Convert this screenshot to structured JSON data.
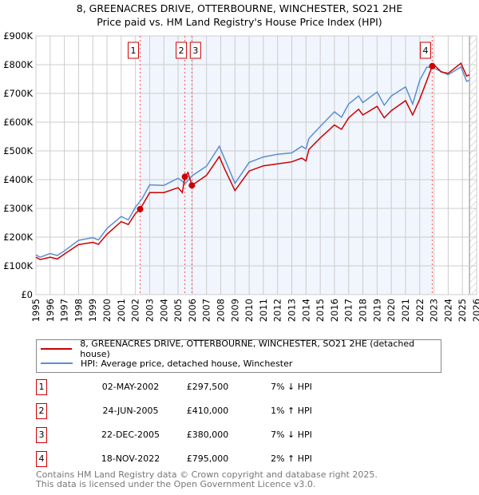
{
  "title": "8, GREENACRES DRIVE, OTTERBOURNE, WINCHESTER, SO21 2HE",
  "subtitle": "Price paid vs. HM Land Registry's House Price Index (HPI)",
  "chart_data": {
    "type": "line",
    "xlim": [
      1995,
      2026
    ],
    "ylim": [
      0,
      900000
    ],
    "yticks": [
      {
        "v": 0,
        "label": "£0"
      },
      {
        "v": 100000,
        "label": "£100K"
      },
      {
        "v": 200000,
        "label": "£200K"
      },
      {
        "v": 300000,
        "label": "£300K"
      },
      {
        "v": 400000,
        "label": "£400K"
      },
      {
        "v": 500000,
        "label": "£500K"
      },
      {
        "v": 600000,
        "label": "£600K"
      },
      {
        "v": 700000,
        "label": "£700K"
      },
      {
        "v": 800000,
        "label": "£800K"
      },
      {
        "v": 900000,
        "label": "£900K"
      }
    ],
    "xticks": [
      "1995",
      "1996",
      "1997",
      "1998",
      "1999",
      "2000",
      "2001",
      "2002",
      "2003",
      "2004",
      "2005",
      "2006",
      "2007",
      "2008",
      "2009",
      "2010",
      "2011",
      "2012",
      "2013",
      "2014",
      "2015",
      "2016",
      "2017",
      "2018",
      "2019",
      "2020",
      "2021",
      "2022",
      "2023",
      "2024",
      "2025",
      "2026"
    ],
    "shaded_range": [
      2002.33,
      2022.88
    ],
    "hatched_from": 2025.5,
    "series": [
      {
        "name": "8, GREENACRES DRIVE, OTTERBOURNE, WINCHESTER, SO21 2HE (detached house)",
        "color": "#cc0000",
        "x": [
          1995,
          1995.3,
          1996,
          1996.5,
          1997,
          1998,
          1999,
          1999.4,
          2000,
          2001,
          2001.5,
          2002,
          2002.33,
          2002.6,
          2003,
          2004,
          2005,
          2005.3,
          2005.48,
          2005.7,
          2005.97,
          2006.5,
          2007,
          2007.9,
          2008.3,
          2009,
          2010,
          2011,
          2012,
          2013,
          2013.7,
          2014,
          2014.2,
          2015,
          2016,
          2016.5,
          2017,
          2017.7,
          2018,
          2019,
          2019.5,
          2020,
          2021,
          2021.5,
          2022,
          2022.5,
          2022.88,
          2023,
          2023.5,
          2024,
          2024.9,
          2025.3,
          2025.5
        ],
        "y": [
          130000,
          122000,
          130000,
          124000,
          141000,
          174000,
          182000,
          175000,
          210000,
          254000,
          244000,
          282000,
          297500,
          320000,
          355000,
          355000,
          372000,
          355000,
          410000,
          425000,
          380000,
          398000,
          415000,
          480000,
          435000,
          362000,
          430000,
          448000,
          455000,
          462000,
          475000,
          465000,
          505000,
          545000,
          590000,
          575000,
          615000,
          645000,
          625000,
          655000,
          615000,
          640000,
          675000,
          625000,
          680000,
          745000,
          795000,
          800000,
          775000,
          770000,
          805000,
          760000,
          765000
        ]
      },
      {
        "name": "HPI: Average price, detached house, Winchester",
        "color": "#5b8fd1",
        "x": [
          1995,
          1995.3,
          1996,
          1996.5,
          1997,
          1998,
          1999,
          1999.4,
          2000,
          2001,
          2001.5,
          2002,
          2002.5,
          2003,
          2004,
          2005,
          2005.5,
          2006,
          2007,
          2007.9,
          2008.3,
          2009,
          2010,
          2011,
          2012,
          2013,
          2013.7,
          2014,
          2014.2,
          2015,
          2016,
          2016.5,
          2017,
          2017.7,
          2018,
          2019,
          2019.5,
          2020,
          2021,
          2021.5,
          2022,
          2022.5,
          2023,
          2024,
          2024.9,
          2025.3,
          2025.5
        ],
        "y": [
          138000,
          130000,
          143000,
          136000,
          152000,
          189000,
          198000,
          190000,
          230000,
          272000,
          260000,
          304000,
          336000,
          382000,
          380000,
          405000,
          387000,
          414000,
          447000,
          516000,
          470000,
          387000,
          460000,
          479000,
          488000,
          493000,
          516000,
          507000,
          543000,
          585000,
          636000,
          617000,
          663000,
          691000,
          668000,
          705000,
          659000,
          691000,
          723000,
          663000,
          746000,
          792000,
          788000,
          765000,
          792000,
          742000,
          746000
        ]
      }
    ],
    "sales": [
      {
        "n": "1",
        "x": 2002.33,
        "y": 297500
      },
      {
        "n": "2",
        "x": 2005.48,
        "y": 410000
      },
      {
        "n": "3",
        "x": 2005.97,
        "y": 380000
      },
      {
        "n": "4",
        "x": 2022.88,
        "y": 795000
      }
    ]
  },
  "legend": {
    "property": "8, GREENACRES DRIVE, OTTERBOURNE, WINCHESTER, SO21 2HE (detached house)",
    "hpi": "HPI: Average price, detached house, Winchester"
  },
  "transactions": [
    {
      "n": "1",
      "date": "02-MAY-2002",
      "price": "£297,500",
      "delta": "7% ↓ HPI"
    },
    {
      "n": "2",
      "date": "24-JUN-2005",
      "price": "£410,000",
      "delta": "1% ↑ HPI"
    },
    {
      "n": "3",
      "date": "22-DEC-2005",
      "price": "£380,000",
      "delta": "7% ↓ HPI"
    },
    {
      "n": "4",
      "date": "18-NOV-2022",
      "price": "£795,000",
      "delta": "2% ↑ HPI"
    }
  ],
  "footer": {
    "line1": "Contains HM Land Registry data © Crown copyright and database right 2025.",
    "line2": "This data is licensed under the Open Government Licence v3.0."
  }
}
